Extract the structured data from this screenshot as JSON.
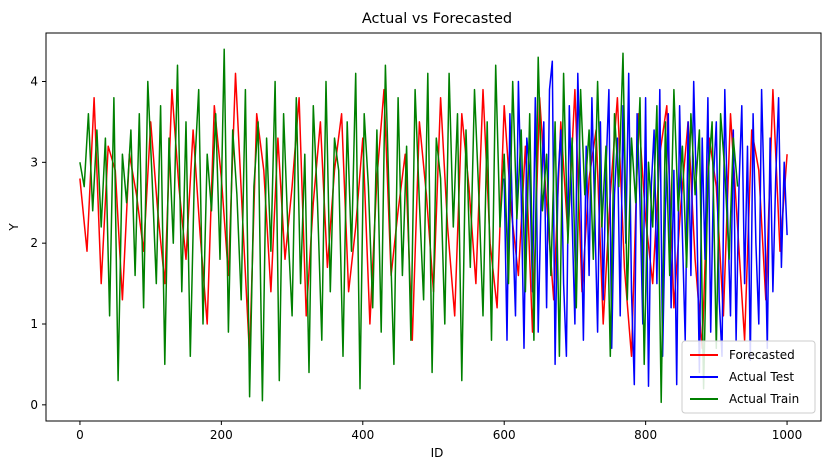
{
  "chart_data": {
    "type": "line",
    "title": "Actual vs Forecasted",
    "xlabel": "ID",
    "ylabel": "Y",
    "xlim": [
      -48,
      1048
    ],
    "ylim": [
      -0.2,
      4.6
    ],
    "x_ticks": [
      0,
      200,
      400,
      600,
      800,
      1000
    ],
    "x_tick_labels": [
      "0",
      "200",
      "400",
      "600",
      "800",
      "1000"
    ],
    "y_ticks": [
      0,
      1,
      2,
      3,
      4
    ],
    "y_tick_labels": [
      "0",
      "1",
      "2",
      "3",
      "4"
    ],
    "grid": false,
    "legend_position": "lower-right",
    "series": [
      {
        "name": "Forecasted",
        "color": "#ff0000",
        "x_start": 0,
        "x_step": 10,
        "values": [
          2.8,
          1.9,
          3.8,
          1.5,
          3.2,
          2.9,
          1.3,
          3.1,
          2.6,
          1.9,
          3.5,
          2.4,
          1.5,
          3.9,
          2.7,
          1.8,
          3.4,
          2.1,
          1.0,
          3.7,
          2.8,
          1.6,
          4.1,
          2.3,
          0.6,
          3.6,
          2.9,
          1.4,
          3.3,
          1.8,
          2.7,
          3.8,
          1.1,
          2.5,
          3.5,
          1.7,
          2.9,
          3.6,
          1.4,
          2.2,
          3.3,
          1.0,
          2.8,
          3.9,
          1.6,
          2.4,
          3.1,
          0.8,
          3.5,
          2.6,
          1.4,
          3.8,
          2.2,
          1.1,
          3.6,
          2.7,
          1.5,
          3.9,
          2.0,
          1.2,
          3.7,
          2.4,
          1.6,
          3.2,
          0.9,
          3.8,
          2.5,
          1.3,
          3.5,
          2.1,
          3.9,
          1.4,
          2.8,
          3.4,
          1.0,
          2.6,
          3.8,
          1.7,
          0.6,
          3.6,
          2.3,
          1.5,
          3.1,
          3.7,
          1.2,
          2.5,
          3.5,
          1.8,
          0.7,
          3.3,
          2.7,
          1.1,
          3.6,
          2.2,
          0.8,
          3.4,
          2.9,
          1.3,
          3.9,
          1.9,
          3.1
        ]
      },
      {
        "name": "Actual Test",
        "color": "#0000ff",
        "x_start": 600,
        "x_step": 4,
        "values": [
          2.8,
          0.8,
          3.6,
          2.2,
          1.1,
          4.0,
          2.6,
          0.7,
          3.3,
          2.9,
          1.4,
          3.8,
          0.9,
          2.5,
          3.5,
          1.2,
          3.9,
          4.25,
          0.5,
          2.8,
          3.4,
          1.5,
          0.6,
          3.7,
          2.3,
          1.0,
          4.1,
          2.7,
          0.8,
          3.2,
          1.6,
          3.8,
          2.4,
          0.9,
          3.5,
          1.3,
          2.9,
          3.9,
          0.7,
          2.6,
          3.3,
          1.1,
          3.7,
          2.0,
          4.1,
          1.4,
          0.25,
          3.6,
          2.5,
          1.0,
          3.8,
          0.23,
          2.7,
          3.4,
          1.5,
          3.9,
          0.6,
          2.4,
          3.6,
          1.2,
          2.9,
          0.25,
          3.7,
          2.1,
          0.8,
          3.5,
          1.6,
          4.0,
          2.6,
          0.4,
          3.3,
          1.8,
          3.8,
          0.9,
          2.8,
          3.5,
          1.3,
          0.6,
          3.9,
          2.3,
          1.1,
          3.4,
          0.8,
          2.7,
          3.7,
          1.5,
          3.2,
          0.55,
          3.6,
          2.0,
          1.0,
          3.9,
          2.5,
          0.7,
          3.3,
          1.4,
          2.8,
          3.8,
          1.7,
          3.0,
          2.1
        ]
      },
      {
        "name": "Actual Train",
        "color": "#008000",
        "x_start": 0,
        "x_step": 6,
        "values": [
          3.0,
          2.7,
          3.6,
          2.4,
          3.4,
          2.2,
          3.3,
          1.1,
          3.8,
          0.3,
          3.1,
          2.5,
          3.4,
          1.6,
          3.6,
          1.2,
          4.0,
          2.8,
          1.5,
          3.7,
          0.5,
          3.3,
          2.0,
          4.2,
          1.4,
          3.5,
          0.6,
          2.9,
          3.9,
          1.0,
          3.1,
          2.4,
          3.6,
          1.8,
          4.4,
          0.9,
          3.4,
          2.6,
          1.3,
          3.9,
          0.1,
          2.7,
          3.5,
          0.05,
          3.3,
          1.9,
          4.0,
          0.3,
          3.6,
          2.2,
          1.1,
          3.8,
          1.5,
          3.1,
          0.4,
          3.7,
          2.5,
          0.8,
          4.0,
          1.4,
          3.3,
          2.9,
          0.6,
          3.5,
          1.9,
          4.1,
          0.2,
          3.6,
          2.7,
          1.2,
          3.4,
          0.9,
          4.2,
          2.3,
          0.5,
          3.8,
          1.6,
          3.2,
          0.8,
          3.9,
          2.5,
          1.3,
          4.1,
          0.4,
          3.3,
          2.8,
          1.0,
          4.1,
          2.2,
          3.6,
          0.3,
          3.4,
          1.7,
          3.9,
          2.6,
          1.1,
          3.5,
          0.8,
          4.2,
          2.2,
          3.1,
          1.5,
          4.0,
          2.3,
          3.4,
          1.4,
          3.6,
          0.8,
          4.3,
          2.4,
          3.1,
          1.6,
          3.5,
          0.6,
          4.1,
          2.0,
          3.3,
          1.2,
          3.9,
          2.6,
          3.4,
          1.8,
          4.0,
          2.2,
          3.2,
          0.6,
          3.6,
          2.7,
          4.35,
          1.3,
          3.3,
          2.5,
          3.8,
          0.5,
          3.0,
          2.2,
          3.7,
          0.03,
          3.5,
          1.6,
          3.9,
          2.4,
          3.2,
          1.7,
          3.6,
          2.6,
          3.4,
          0.2,
          2.8,
          3.5,
          0.7,
          3.6,
          2.9,
          1.8,
          3.3,
          2.7
        ]
      }
    ]
  }
}
